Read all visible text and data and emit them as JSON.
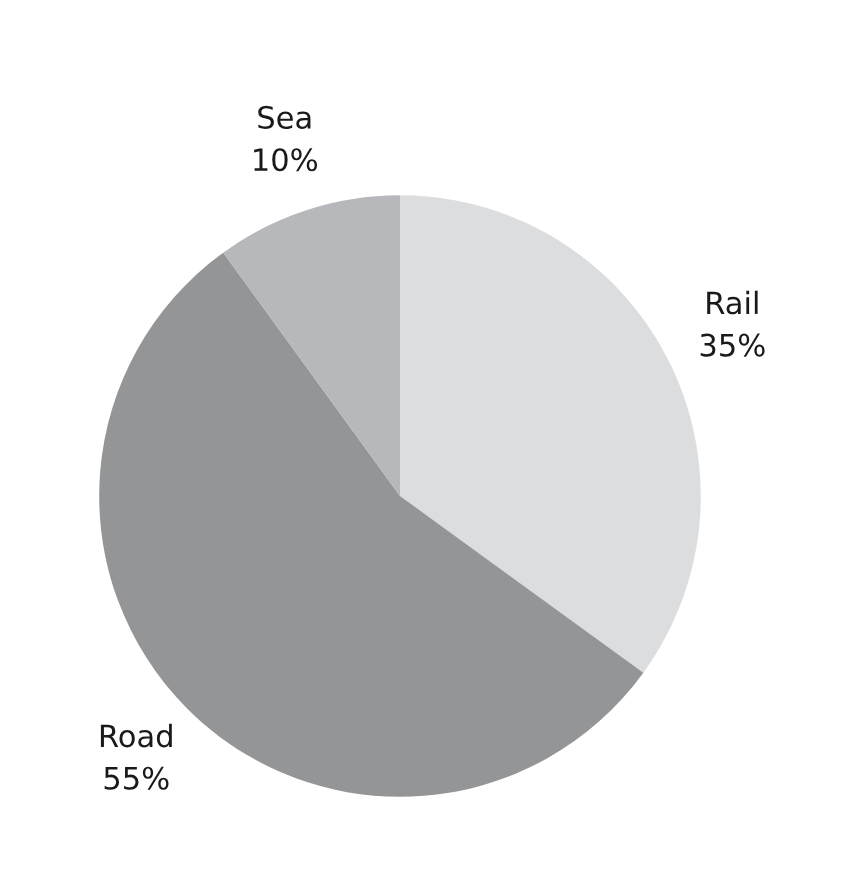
{
  "chart_data": {
    "type": "pie",
    "categories": [
      "Rail",
      "Road",
      "Sea"
    ],
    "values": [
      35,
      55,
      10
    ],
    "value_labels": [
      "35%",
      "55%",
      "10%"
    ],
    "colors": [
      "#dcdddf",
      "#949597",
      "#b7b8bb"
    ],
    "legend": false
  }
}
